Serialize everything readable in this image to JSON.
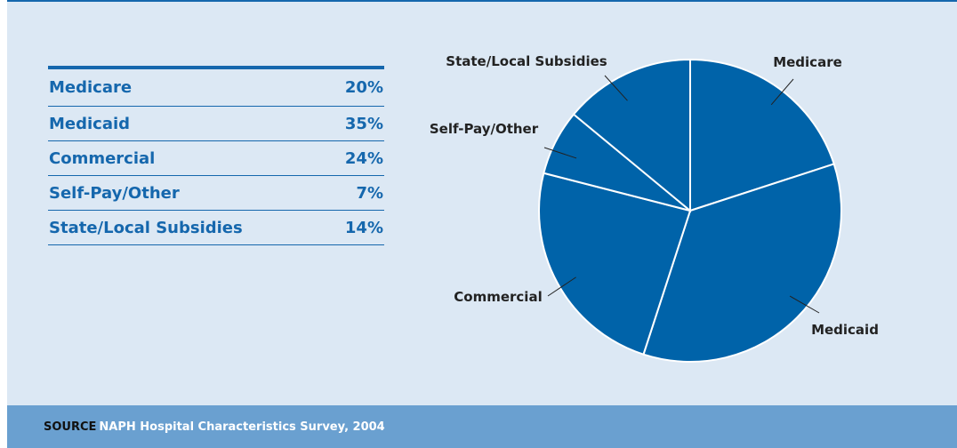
{
  "chart_data": {
    "type": "pie",
    "categories": [
      "Medicare",
      "Medicaid",
      "Commercial",
      "Self-Pay/Other",
      "State/Local Subsidies"
    ],
    "values": [
      20,
      35,
      24,
      7,
      14
    ],
    "value_labels": [
      "20%",
      "35%",
      "24%",
      "7%",
      "14%"
    ],
    "unit": "%",
    "slice_color": "#0063a9",
    "legend": "table-left"
  },
  "table": {
    "rows": [
      {
        "label": "Medicare",
        "value": "20%"
      },
      {
        "label": "Medicaid",
        "value": "35%"
      },
      {
        "label": "Commercial",
        "value": "24%"
      },
      {
        "label": "Self-Pay/Other",
        "value": "7%"
      },
      {
        "label": "State/Local Subsidies",
        "value": "14%"
      }
    ]
  },
  "footer": {
    "source_label": "SOURCE",
    "source_text": "NAPH Hospital Characteristics Survey, 2004"
  },
  "colors": {
    "accent": "#1567ad",
    "background": "#dce8f4",
    "footer_bg": "#6aa0d0"
  }
}
